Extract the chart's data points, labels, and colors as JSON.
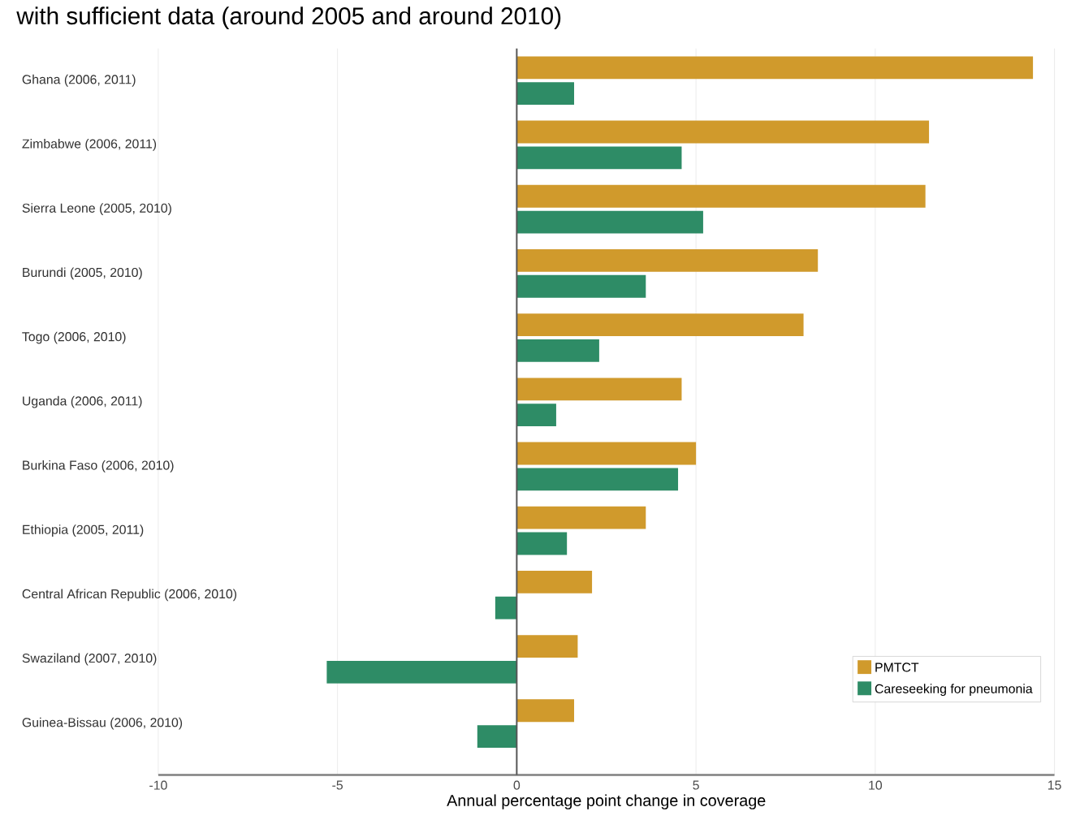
{
  "chart_data": {
    "type": "bar",
    "orientation": "horizontal",
    "title": "with sufficient data (around 2005 and around 2010)",
    "xlabel": "Annual percentage point change in coverage",
    "categories": [
      "Ghana (2006, 2011)",
      "Zimbabwe (2006, 2011)",
      "Sierra Leone (2005, 2010)",
      "Burundi (2005, 2010)",
      "Togo (2006, 2010)",
      "Uganda (2006, 2011)",
      "Burkina Faso (2006, 2010)",
      "Ethiopia (2005, 2011)",
      "Central African Republic (2006, 2010)",
      "Swaziland (2007, 2010)",
      "Guinea-Bissau (2006, 2010)"
    ],
    "series": [
      {
        "name": "PMTCT",
        "color": "#d09a2c",
        "values": [
          14.4,
          11.5,
          11.4,
          8.4,
          8.0,
          4.6,
          5.0,
          3.6,
          2.1,
          1.7,
          1.6
        ]
      },
      {
        "name": "Careseeking for pneumonia",
        "color": "#2e8c66",
        "values": [
          1.6,
          4.6,
          5.2,
          3.6,
          2.3,
          1.1,
          4.5,
          1.4,
          -0.6,
          -5.3,
          -1.1
        ]
      }
    ],
    "xlim": [
      -10,
      15
    ],
    "xticks": [
      -10,
      -5,
      0,
      5,
      10,
      15
    ],
    "ref_lines": [
      {
        "axis": "x",
        "value": 0,
        "color": "#555555"
      }
    ],
    "grid": "x",
    "legend": "bottom right"
  }
}
